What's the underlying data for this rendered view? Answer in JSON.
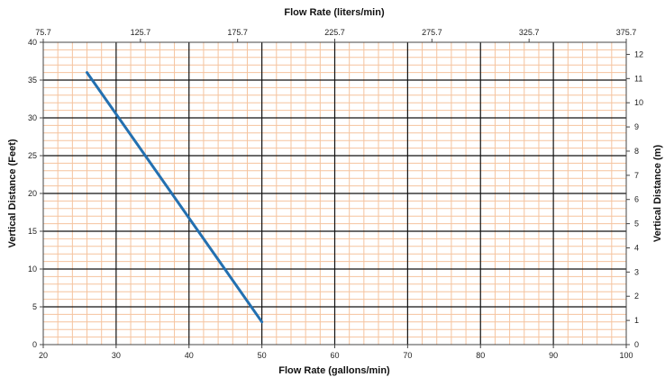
{
  "chart_data": {
    "type": "line",
    "title": "",
    "xlabel": "Flow Rate (gallons/min)",
    "ylabel": "Vertical Distance (Feet)",
    "x2label": "Flow Rate (liters/min)",
    "y2label": "Vertical Distance (m)",
    "xlim": [
      20,
      100
    ],
    "ylim": [
      0,
      40
    ],
    "x2lim": [
      75.7,
      375.7
    ],
    "y2lim": [
      0,
      12.5
    ],
    "x_ticks": [
      "20",
      "30",
      "40",
      "50",
      "60",
      "70",
      "80",
      "90",
      "100"
    ],
    "y_ticks": [
      "0",
      "5",
      "10",
      "15",
      "20",
      "25",
      "30",
      "35",
      "40"
    ],
    "x2_ticks": [
      "75.7",
      "125.7",
      "175.7",
      "225.7",
      "275.7",
      "325.7",
      "375.7"
    ],
    "y2_ticks": [
      "0",
      "1",
      "2",
      "3",
      "4",
      "5",
      "6",
      "7",
      "8",
      "9",
      "10",
      "11",
      "12"
    ],
    "grid": {
      "major": true,
      "minor": true
    },
    "colors": {
      "line": "#2470B0",
      "major_grid": "#111111",
      "minor_grid": "#F5C39E"
    },
    "series": [
      {
        "x": [
          26,
          50
        ],
        "y": [
          36,
          3
        ]
      }
    ]
  }
}
